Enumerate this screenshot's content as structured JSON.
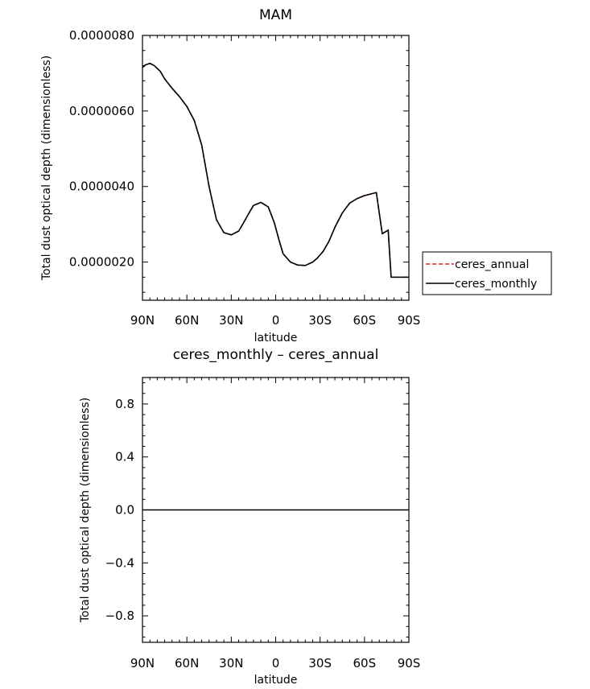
{
  "chart_data": [
    {
      "type": "line",
      "title": "MAM",
      "xlabel": "latitude",
      "ylabel": "Total dust optical depth (dimensionless)",
      "x_ticks": [
        {
          "value": 90,
          "label": "90N"
        },
        {
          "value": 60,
          "label": "60N"
        },
        {
          "value": 30,
          "label": "30N"
        },
        {
          "value": 0,
          "label": "0"
        },
        {
          "value": -30,
          "label": "30S"
        },
        {
          "value": -60,
          "label": "60S"
        },
        {
          "value": -90,
          "label": "90S"
        }
      ],
      "y_ticks": [
        {
          "value": 2e-06,
          "label": "0.0000020"
        },
        {
          "value": 4e-06,
          "label": "0.0000040"
        },
        {
          "value": 6e-06,
          "label": "0.0000060"
        },
        {
          "value": 8e-06,
          "label": "0.0000080"
        }
      ],
      "xlim": [
        90,
        -90
      ],
      "ylim": [
        9.9e-07,
        8e-06
      ],
      "grid": false,
      "legend_position": "right, outside plot",
      "series": [
        {
          "name": "ceres_annual",
          "color": "#e02020",
          "dash": "dashed",
          "x": [
            90,
            88,
            85,
            82,
            78,
            75,
            70,
            65,
            60,
            55,
            50,
            45,
            40,
            35,
            30,
            25,
            22,
            18,
            15,
            10,
            5,
            1,
            -2,
            -5,
            -10,
            -15,
            -20,
            -25,
            -28,
            -32,
            -36,
            -40,
            -45,
            -50,
            -55,
            -60,
            -64,
            -68,
            -72,
            -74,
            -75,
            -76,
            -78,
            -80,
            -82,
            -84,
            -85,
            -86,
            -88,
            -90
          ],
          "y": [
            7.15e-06,
            7.22e-06,
            7.26e-06,
            7.2e-06,
            7.05e-06,
            6.85e-06,
            6.6e-06,
            6.38e-06,
            6.12e-06,
            5.75e-06,
            5.1e-06,
            4e-06,
            3.12e-06,
            2.78e-06,
            2.72e-06,
            2.82e-06,
            3.02e-06,
            3.3e-06,
            3.5e-06,
            3.58e-06,
            3.46e-06,
            3.05e-06,
            2.62e-06,
            2.22e-06,
            2e-06,
            1.92e-06,
            1.91e-06,
            2e-06,
            2.1e-06,
            2.28e-06,
            2.55e-06,
            2.92e-06,
            3.3e-06,
            3.56e-06,
            3.68e-06,
            3.76e-06,
            3.8e-06,
            3.84e-06,
            2.75e-06,
            2.8e-06,
            2.82e-06,
            2.85e-06,
            1.6e-06,
            1.6e-06,
            1.6e-06,
            1.6e-06,
            1.6e-06,
            1.6e-06,
            1.6e-06,
            1.6e-06
          ]
        },
        {
          "name": "ceres_monthly",
          "color": "#000000",
          "dash": "solid",
          "x": [
            90,
            88,
            85,
            82,
            78,
            75,
            70,
            65,
            60,
            55,
            50,
            45,
            40,
            35,
            30,
            25,
            22,
            18,
            15,
            10,
            5,
            1,
            -2,
            -5,
            -10,
            -15,
            -20,
            -25,
            -28,
            -32,
            -36,
            -40,
            -45,
            -50,
            -55,
            -60,
            -64,
            -68,
            -72,
            -74,
            -75,
            -76,
            -78,
            -80,
            -82,
            -84,
            -85,
            -86,
            -88,
            -90
          ],
          "y": [
            7.15e-06,
            7.22e-06,
            7.26e-06,
            7.2e-06,
            7.05e-06,
            6.85e-06,
            6.6e-06,
            6.38e-06,
            6.12e-06,
            5.75e-06,
            5.1e-06,
            4e-06,
            3.12e-06,
            2.78e-06,
            2.72e-06,
            2.82e-06,
            3.02e-06,
            3.3e-06,
            3.5e-06,
            3.58e-06,
            3.46e-06,
            3.05e-06,
            2.62e-06,
            2.22e-06,
            2e-06,
            1.92e-06,
            1.91e-06,
            2e-06,
            2.1e-06,
            2.28e-06,
            2.55e-06,
            2.92e-06,
            3.3e-06,
            3.56e-06,
            3.68e-06,
            3.76e-06,
            3.8e-06,
            3.84e-06,
            2.75e-06,
            2.8e-06,
            2.82e-06,
            2.85e-06,
            1.6e-06,
            1.6e-06,
            1.6e-06,
            1.6e-06,
            1.6e-06,
            1.6e-06,
            1.6e-06,
            1.6e-06
          ]
        }
      ]
    },
    {
      "type": "line",
      "title": "ceres_monthly – ceres_annual",
      "xlabel": "latitude",
      "ylabel": "Total dust optical depth (dimensionless)",
      "x_ticks": [
        {
          "value": 90,
          "label": "90N"
        },
        {
          "value": 60,
          "label": "60N"
        },
        {
          "value": 30,
          "label": "30N"
        },
        {
          "value": 0,
          "label": "0"
        },
        {
          "value": -30,
          "label": "30S"
        },
        {
          "value": -60,
          "label": "60S"
        },
        {
          "value": -90,
          "label": "90S"
        }
      ],
      "y_ticks": [
        {
          "value": -0.8,
          "label": "−0.8"
        },
        {
          "value": -0.4,
          "label": "−0.4"
        },
        {
          "value": 0.0,
          "label": "0.0"
        },
        {
          "value": 0.4,
          "label": "0.4"
        },
        {
          "value": 0.8,
          "label": "0.8"
        }
      ],
      "xlim": [
        90,
        -90
      ],
      "ylim": [
        -1,
        1
      ],
      "grid": false,
      "series": [
        {
          "color": "#000000",
          "dash": "solid",
          "x": [
            90,
            -90
          ],
          "y": [
            0,
            0
          ]
        }
      ]
    }
  ]
}
